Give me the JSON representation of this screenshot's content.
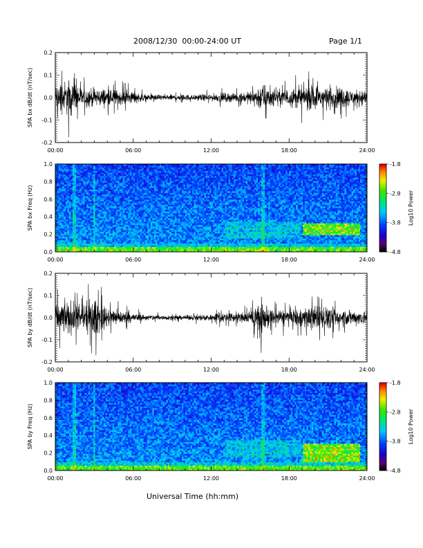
{
  "header": {
    "title": "2008/12/30  00:00-24:00 UT",
    "page": "Page 1/1"
  },
  "xlabel": "Universal Time (hh:mm)",
  "x_tick_labels": [
    "00:00",
    "06:00",
    "12:00",
    "18:00",
    "24:00"
  ],
  "colorbar": {
    "label": "Log10 Power",
    "ticks": [
      "-1.8",
      "-2.8",
      "-3.8",
      "-4.8"
    ],
    "range": [
      -4.8,
      -1.8
    ],
    "colormap": "rainbow"
  },
  "chart_data": [
    {
      "type": "line",
      "ylabel": "SPA bx dB/dt (nT/sec)",
      "xlim": [
        "00:00",
        "24:00"
      ],
      "ylim": [
        -0.2,
        0.2
      ],
      "yticks": [
        "-0.2",
        "-0.1",
        "0.0",
        "0.1",
        "0.2"
      ],
      "color": "#000000",
      "envelope": {
        "time_hours": [
          0,
          1,
          1.5,
          2,
          3,
          4,
          5,
          6,
          7,
          8,
          9,
          10,
          11,
          12,
          13,
          14,
          15,
          15.5,
          16,
          16.5,
          17,
          18,
          19,
          20,
          21,
          22,
          23,
          24
        ],
        "amplitude": [
          0.09,
          0.12,
          0.1,
          0.07,
          0.06,
          0.06,
          0.05,
          0.04,
          0.02,
          0.02,
          0.02,
          0.02,
          0.02,
          0.025,
          0.03,
          0.03,
          0.04,
          0.07,
          0.1,
          0.06,
          0.05,
          0.06,
          0.08,
          0.08,
          0.08,
          0.07,
          0.05,
          0.05
        ]
      }
    },
    {
      "type": "heatmap",
      "ylabel": "SPA bx Freq (Hz)",
      "xlim": [
        "00:00",
        "24:00"
      ],
      "ylim": [
        0.0,
        1.0
      ],
      "yticks": [
        "0.0",
        "0.2",
        "0.4",
        "0.6",
        "0.8",
        "1.0"
      ],
      "colorbar_range": [
        -4.8,
        -1.8
      ],
      "features": [
        {
          "desc": "strong low-frequency power band",
          "freq_hz": [
            0.0,
            0.06
          ],
          "time": [
            "00:00",
            "24:00"
          ]
        },
        {
          "desc": "enhanced power band",
          "freq_hz": [
            0.2,
            0.32
          ],
          "time": [
            "19:00",
            "23:30"
          ]
        }
      ]
    },
    {
      "type": "line",
      "ylabel": "SPA by dB/dt (nT/sec)",
      "xlim": [
        "00:00",
        "24:00"
      ],
      "ylim": [
        -0.2,
        0.2
      ],
      "yticks": [
        "-0.2",
        "-0.1",
        "0.0",
        "0.1",
        "0.2"
      ],
      "color": "#000000",
      "envelope": {
        "time_hours": [
          0,
          1,
          1.5,
          2,
          3,
          4,
          5,
          6,
          7,
          8,
          9,
          10,
          11,
          12,
          13,
          14,
          15,
          15.5,
          16,
          16.5,
          17,
          18,
          19,
          20,
          21,
          22,
          23,
          24
        ],
        "amplitude": [
          0.08,
          0.12,
          0.1,
          0.08,
          0.13,
          0.06,
          0.05,
          0.03,
          0.02,
          0.02,
          0.015,
          0.015,
          0.02,
          0.025,
          0.03,
          0.035,
          0.04,
          0.08,
          0.12,
          0.06,
          0.05,
          0.06,
          0.07,
          0.08,
          0.07,
          0.06,
          0.05,
          0.05
        ]
      }
    },
    {
      "type": "heatmap",
      "ylabel": "SPA by Freq (Hz)",
      "xlim": [
        "00:00",
        "24:00"
      ],
      "ylim": [
        0.0,
        1.0
      ],
      "yticks": [
        "0.0",
        "0.2",
        "0.4",
        "0.6",
        "0.8",
        "1.0"
      ],
      "colorbar_range": [
        -4.8,
        -1.8
      ],
      "features": [
        {
          "desc": "strong low-frequency power band",
          "freq_hz": [
            0.0,
            0.08
          ],
          "time": [
            "00:00",
            "24:00"
          ]
        },
        {
          "desc": "enhanced power band",
          "freq_hz": [
            0.1,
            0.3
          ],
          "time": [
            "19:00",
            "23:30"
          ]
        }
      ]
    }
  ]
}
